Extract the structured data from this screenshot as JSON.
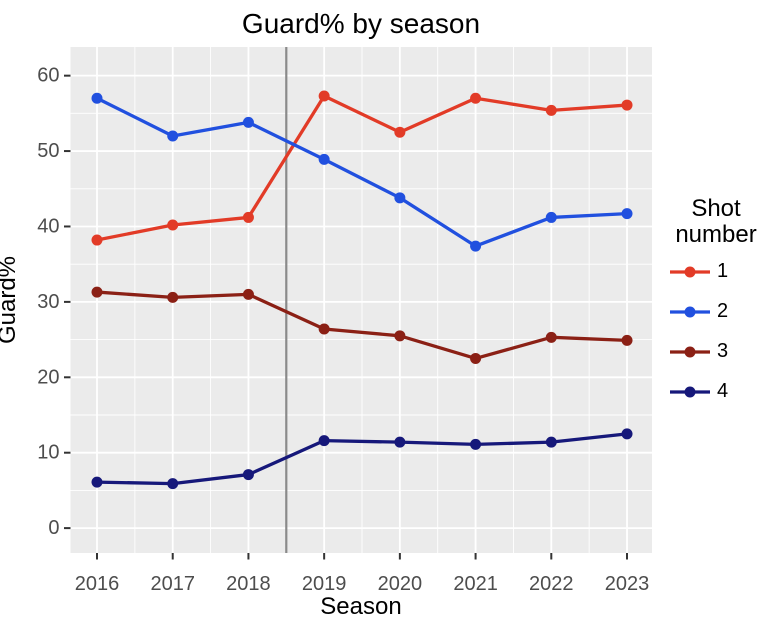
{
  "chart_data": {
    "type": "line",
    "title": "Guard% by season",
    "xlabel": "Season",
    "ylabel": "Guard%",
    "legend_title_lines": [
      "Shot",
      "number"
    ],
    "legend_position": "right",
    "x": [
      2016,
      2017,
      2018,
      2019,
      2020,
      2021,
      2022,
      2023
    ],
    "series": [
      {
        "name": "1",
        "color": "#E23B27",
        "values": [
          38.2,
          40.2,
          41.2,
          57.3,
          52.5,
          57.0,
          55.4,
          56.1
        ]
      },
      {
        "name": "2",
        "color": "#2150DF",
        "values": [
          57.0,
          52.0,
          53.8,
          48.9,
          43.8,
          37.4,
          41.2,
          41.7
        ]
      },
      {
        "name": "3",
        "color": "#8B2015",
        "values": [
          31.3,
          30.6,
          31.0,
          26.4,
          25.5,
          22.5,
          25.3,
          24.9
        ]
      },
      {
        "name": "4",
        "color": "#16187A",
        "values": [
          6.1,
          5.9,
          7.1,
          11.6,
          11.4,
          11.1,
          11.4,
          12.5
        ]
      }
    ],
    "yticks": [
      0,
      10,
      20,
      30,
      40,
      50,
      60
    ],
    "ylim": [
      -3.3,
      63.8
    ],
    "xlim": [
      2015.65,
      2023.33
    ],
    "vline_x": 2018.5,
    "grid": true,
    "colors": {
      "panel_bg": "#EBEBEB",
      "grid": "#FFFFFF",
      "vline": "#8A8A8A",
      "tick_label": "#4D4D4D",
      "tick_mark": "#333333",
      "text": "#000000"
    }
  }
}
